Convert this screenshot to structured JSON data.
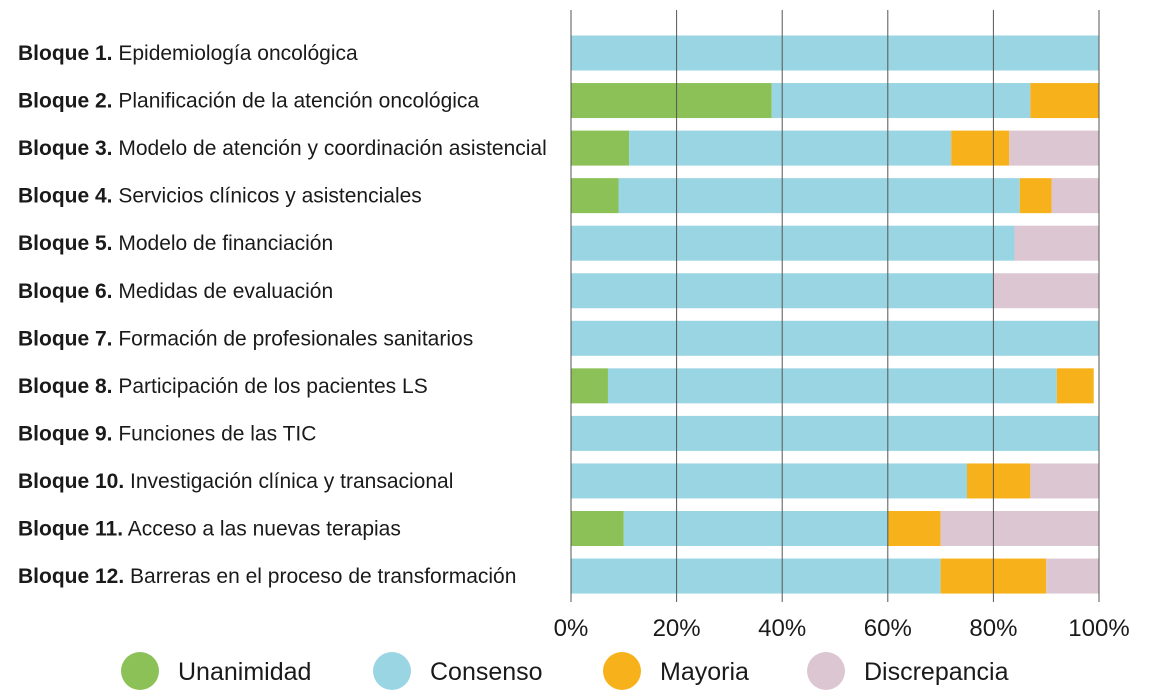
{
  "chart_data": {
    "type": "bar",
    "orientation": "horizontal",
    "stacked": true,
    "categories": [
      {
        "prefix": "Bloque 1.",
        "text": "Epidemiología oncológica"
      },
      {
        "prefix": "Bloque 2.",
        "text": "Planificación de la atención oncológica"
      },
      {
        "prefix": "Bloque 3.",
        "text": "Modelo de atención y coordinación asistencial"
      },
      {
        "prefix": "Bloque 4.",
        "text": "Servicios clínicos y asistenciales"
      },
      {
        "prefix": "Bloque 5.",
        "text": "Modelo de financiación"
      },
      {
        "prefix": "Bloque 6.",
        "text": "Medidas de evaluación"
      },
      {
        "prefix": "Bloque 7.",
        "text": "Formación de profesionales sanitarios"
      },
      {
        "prefix": "Bloque 8.",
        "text": "Participación de los pacientes LS"
      },
      {
        "prefix": "Bloque 9.",
        "text": "Funciones de las TIC"
      },
      {
        "prefix": "Bloque 10.",
        "text": "Investigación clínica y transacional"
      },
      {
        "prefix": "Bloque 11.",
        "text": "Acceso a las nuevas terapias"
      },
      {
        "prefix": "Bloque 12.",
        "text": "Barreras en el proceso de transformación"
      }
    ],
    "series": [
      {
        "name": "Unanimidad",
        "color": "#8bc156",
        "values": [
          0,
          38,
          11,
          9,
          0,
          0,
          0,
          7,
          0,
          0,
          10,
          0
        ]
      },
      {
        "name": "Consenso",
        "color": "#9ad5e3",
        "values": [
          100,
          49,
          61,
          76,
          84,
          80,
          100,
          85,
          100,
          75,
          50,
          70
        ]
      },
      {
        "name": "Mayoria",
        "color": "#f7b21b",
        "values": [
          0,
          13,
          11,
          6,
          0,
          0,
          0,
          7,
          0,
          12,
          10,
          20
        ]
      },
      {
        "name": "Discrepancia",
        "color": "#dcc6d2",
        "values": [
          0,
          0,
          17,
          9,
          16,
          20,
          0,
          0,
          0,
          13,
          30,
          10
        ]
      }
    ],
    "xlim": [
      0,
      100
    ],
    "xticks": [
      "0%",
      "20%",
      "40%",
      "60%",
      "80%",
      "100%"
    ],
    "grid": true,
    "legend_position": "bottom",
    "title": "",
    "xlabel": "",
    "ylabel": ""
  }
}
